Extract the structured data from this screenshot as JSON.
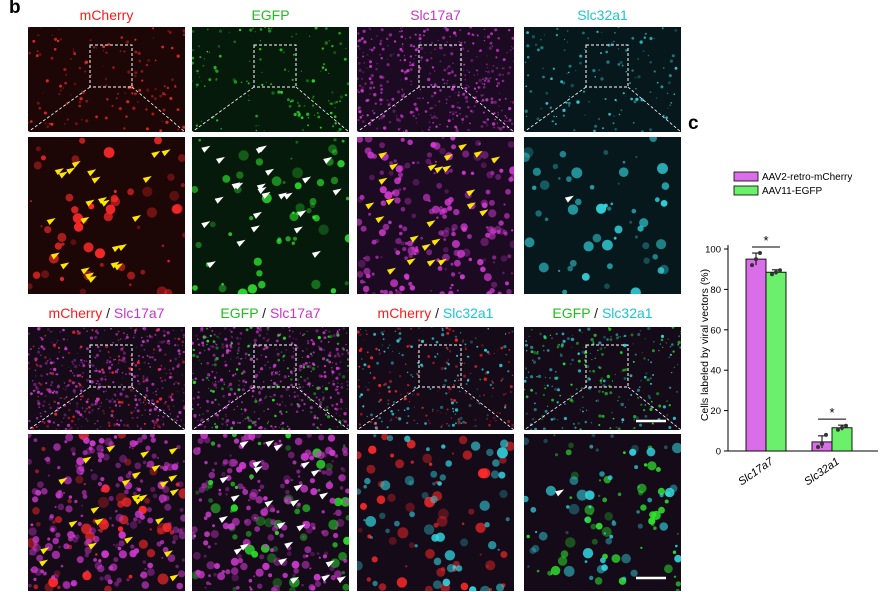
{
  "panel_labels": {
    "b": "b",
    "c": "c"
  },
  "top_headers": [
    {
      "text": "mCherry",
      "color": "#ff1a1a"
    },
    {
      "text": "EGFP",
      "color": "#1fbf1f"
    },
    {
      "text": "Slc17a7",
      "color": "#cc33cc"
    },
    {
      "text": "Slc32a1",
      "color": "#19c6d1"
    }
  ],
  "merge_headers": [
    {
      "a": "mCherry",
      "ac": "#ff1a1a",
      "sep": " / ",
      "b": "Slc17a7",
      "bc": "#cc33cc"
    },
    {
      "a": "EGFP",
      "ac": "#1fbf1f",
      "sep": " / ",
      "b": "Slc17a7",
      "bc": "#cc33cc"
    },
    {
      "a": "mCherry",
      "ac": "#ff1a1a",
      "sep": " / ",
      "b": "Slc32a1",
      "bc": "#19c6d1"
    },
    {
      "a": "EGFP",
      "ac": "#1fbf1f",
      "sep": " / ",
      "b": "Slc32a1",
      "bc": "#19c6d1"
    }
  ],
  "colors": {
    "mcherry": "#ff2a2a",
    "egfp": "#2ee82e",
    "slc17a7": "#d23ad2",
    "slc32a1": "#33d6e0",
    "arrow_yellow": "#ffe600",
    "arrow_white": "#ffffff"
  },
  "chart_data": {
    "type": "bar",
    "categories": [
      "Slc17a7",
      "Slc32a1"
    ],
    "series": [
      {
        "name": "AAV2-retro-mCherry",
        "color": "#d96ee8",
        "values": [
          95,
          4.5
        ],
        "errors": [
          3,
          3
        ],
        "points": [
          [
            92,
            95,
            98
          ],
          [
            2,
            3.5,
            8
          ]
        ]
      },
      {
        "name": "AAV11-EGFP",
        "color": "#6cf06c",
        "values": [
          88.5,
          11.5
        ],
        "errors": [
          1.2,
          1.3
        ],
        "points": [
          [
            87.5,
            88.5,
            89.5
          ],
          [
            10.5,
            11.5,
            12.5
          ]
        ]
      }
    ],
    "ylabel": "Cells labeled by viral vectors (%)",
    "ylim": [
      0,
      100
    ],
    "yticks": [
      0,
      20,
      40,
      60,
      80,
      100
    ],
    "significance": [
      "*",
      "*"
    ],
    "legend_position": "top"
  }
}
